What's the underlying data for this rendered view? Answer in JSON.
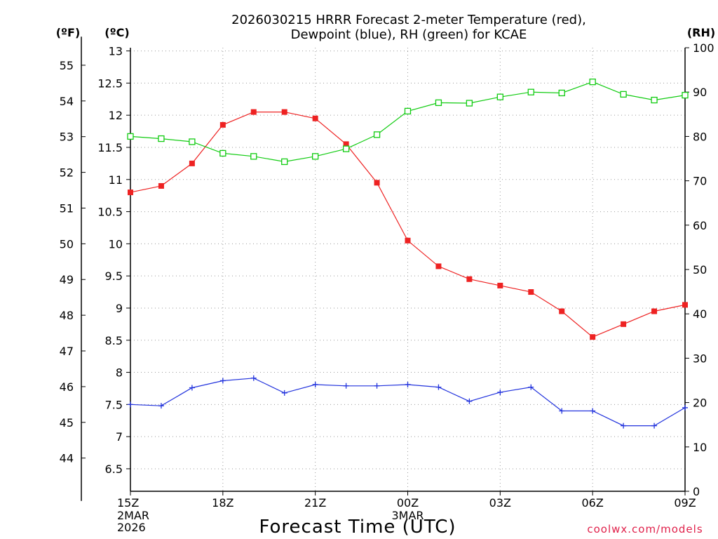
{
  "title_line1": "2026030215 HRRR Forecast 2-meter Temperature (red),",
  "title_line2": "Dewpoint (blue), RH (green) for KCAE",
  "unit_f": "(ºF)",
  "unit_c": "(ºC)",
  "unit_rh": "(RH)",
  "xlabel": "Forecast Time (UTC)",
  "credit": "coolwx.com/models",
  "colors": {
    "temperature": "#ee2222",
    "dewpoint": "#2233dd",
    "rh": "#11cc11"
  },
  "chart_data": {
    "type": "line",
    "x": [
      "15Z",
      "16Z",
      "17Z",
      "18Z",
      "19Z",
      "20Z",
      "21Z",
      "22Z",
      "23Z",
      "00Z",
      "01Z",
      "02Z",
      "03Z",
      "04Z",
      "05Z",
      "06Z",
      "07Z",
      "08Z",
      "09Z"
    ],
    "x_ticks": [
      {
        "label": "15Z",
        "sub": [
          "2MAR",
          "2026"
        ]
      },
      {
        "label": "18Z",
        "sub": []
      },
      {
        "label": "21Z",
        "sub": []
      },
      {
        "label": "00Z",
        "sub": [
          "3MAR"
        ]
      },
      {
        "label": "03Z",
        "sub": []
      },
      {
        "label": "06Z",
        "sub": []
      },
      {
        "label": "09Z",
        "sub": []
      }
    ],
    "ylim_c": [
      6.15,
      13.05
    ],
    "yticks_c": [
      "6.5",
      "7",
      "7.5",
      "8",
      "8.5",
      "9",
      "9.5",
      "10",
      "10.5",
      "11",
      "11.5",
      "12",
      "12.5",
      "13"
    ],
    "yticks_f": [
      "44",
      "45",
      "46",
      "47",
      "48",
      "49",
      "50",
      "51",
      "52",
      "53",
      "54",
      "55"
    ],
    "ylim_rh": [
      0,
      100
    ],
    "yticks_rh": [
      "0",
      "10",
      "20",
      "30",
      "40",
      "50",
      "60",
      "70",
      "80",
      "90",
      "100"
    ],
    "grid": true,
    "series": [
      {
        "key": "temperature",
        "axis": "c",
        "marker": "filled-square",
        "values": [
          10.8,
          10.9,
          11.25,
          11.85,
          12.05,
          12.05,
          11.95,
          11.55,
          10.95,
          10.05,
          9.65,
          9.45,
          9.35,
          9.25,
          8.95,
          8.55,
          8.75,
          8.95,
          9.05
        ]
      },
      {
        "key": "dewpoint",
        "axis": "c",
        "marker": "plus",
        "values": [
          7.5,
          7.48,
          7.76,
          7.87,
          7.91,
          7.68,
          7.81,
          7.79,
          7.79,
          7.81,
          7.77,
          7.55,
          7.69,
          7.77,
          7.4,
          7.4,
          7.17,
          7.17,
          7.45
        ]
      },
      {
        "key": "rh",
        "axis": "rh",
        "marker": "open-square",
        "values": [
          80,
          79.5,
          78.8,
          76.2,
          75.5,
          74.3,
          75.5,
          77.2,
          80.4,
          85.7,
          87.6,
          87.5,
          88.9,
          90.0,
          89.8,
          92.3,
          89.5,
          88.2,
          89.3
        ]
      }
    ]
  }
}
